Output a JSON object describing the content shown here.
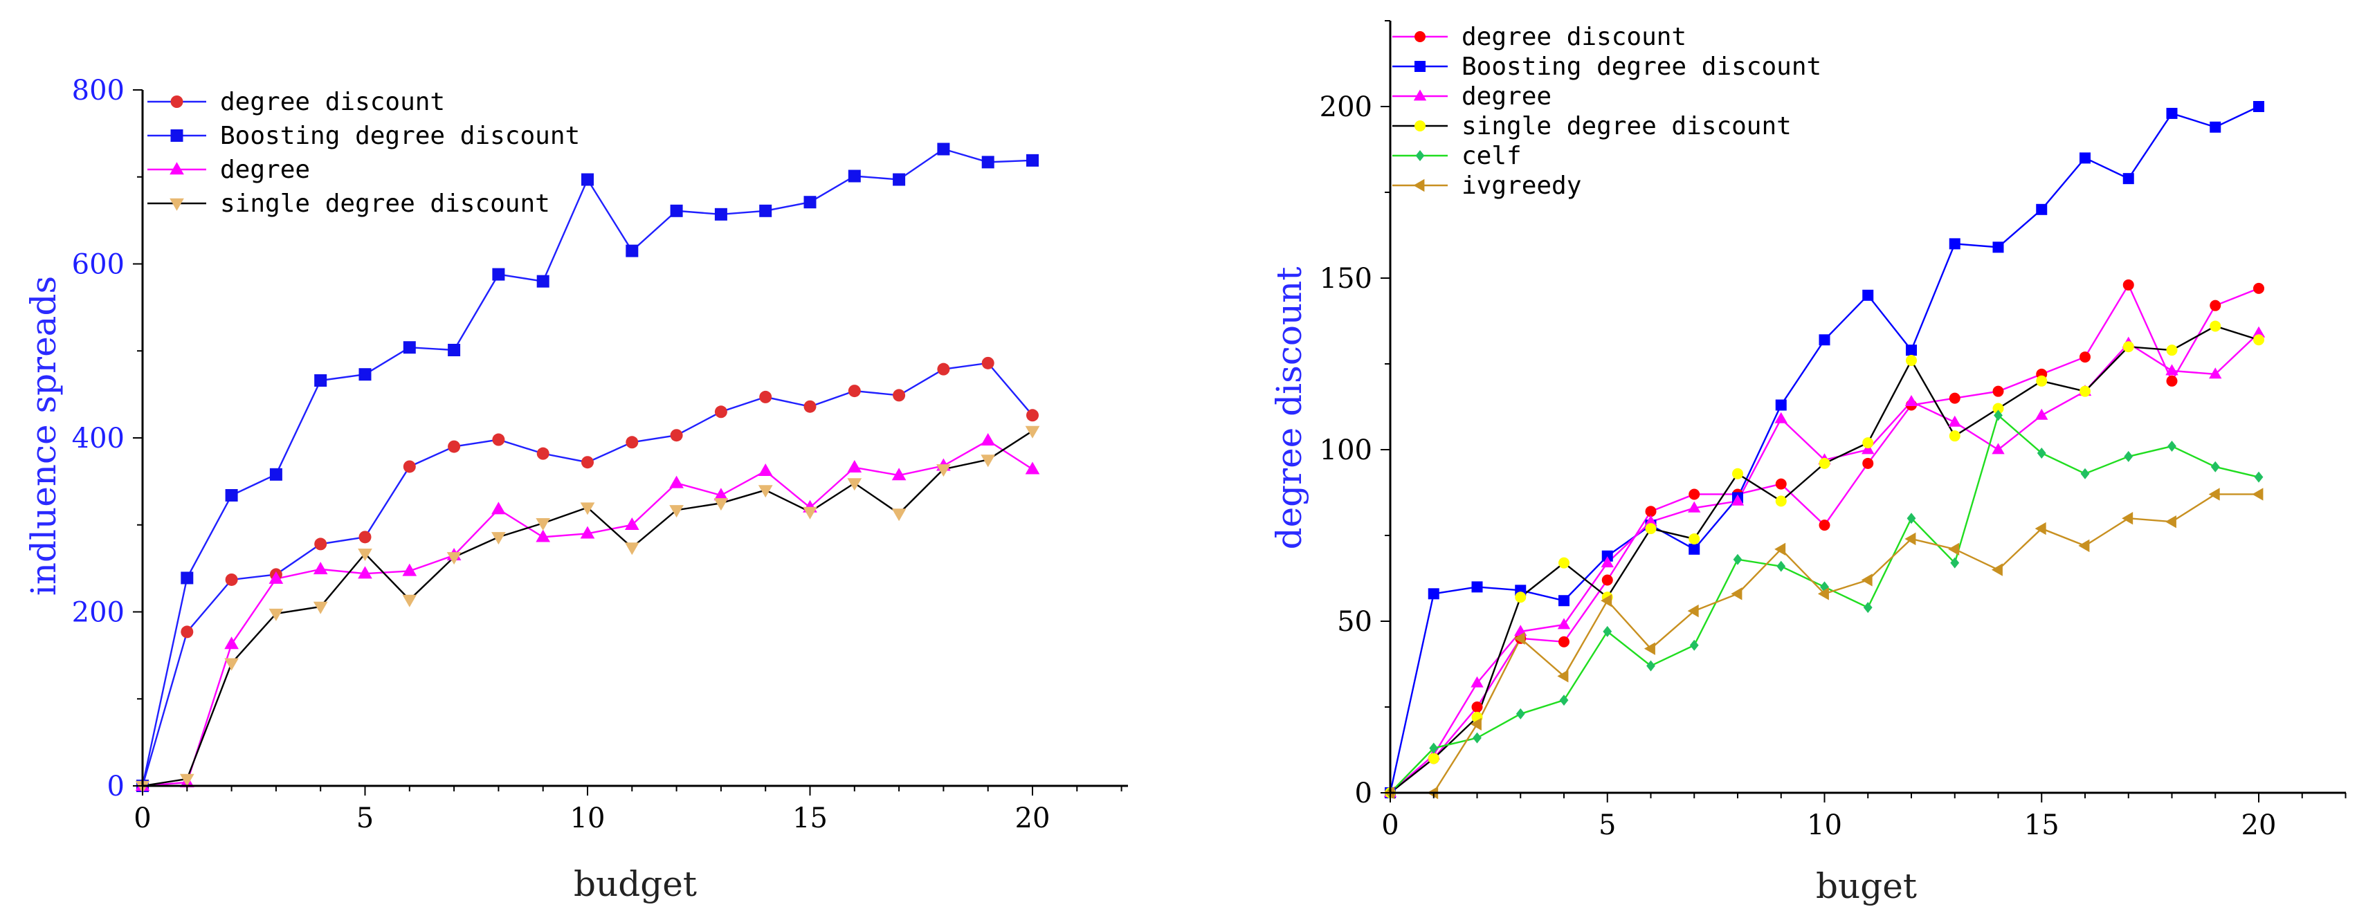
{
  "chart_data": [
    {
      "type": "line",
      "xlabel": "budget",
      "ylabel": "indluence spreads",
      "xlim": [
        0,
        22
      ],
      "ylim": [
        0,
        800
      ],
      "xticks": [
        0,
        5,
        10,
        15,
        20
      ],
      "yticks": [
        0,
        200,
        400,
        600,
        800
      ],
      "legend_position": "top-left",
      "x": [
        0,
        1,
        2,
        3,
        4,
        5,
        6,
        7,
        8,
        9,
        10,
        11,
        12,
        13,
        14,
        15,
        16,
        17,
        18,
        19,
        20
      ],
      "series": [
        {
          "name": "degree discount",
          "color": "#e03030",
          "line_color": "#2020ff",
          "marker": "circle",
          "values": [
            0,
            177,
            237,
            243,
            278,
            286,
            367,
            390,
            398,
            382,
            372,
            395,
            403,
            430,
            447,
            436,
            454,
            449,
            479,
            486,
            426
          ]
        },
        {
          "name": "Boosting degree discount",
          "color": "#1010ee",
          "line_color": "#2020ff",
          "marker": "square",
          "values": [
            0,
            239,
            334,
            358,
            466,
            473,
            504,
            501,
            588,
            580,
            697,
            615,
            661,
            657,
            661,
            671,
            701,
            697,
            732,
            717,
            719
          ]
        },
        {
          "name": "degree",
          "color": "#ff00ff",
          "line_color": "#ff00ff",
          "marker": "triangle-up",
          "values": [
            0,
            4,
            163,
            238,
            249,
            244,
            247,
            265,
            318,
            286,
            290,
            300,
            348,
            334,
            362,
            320,
            366,
            357,
            368,
            397,
            364
          ]
        },
        {
          "name": "single degree discount",
          "color": "#e8b870",
          "line_color": "#000000",
          "marker": "triangle-down",
          "values": [
            0,
            8,
            141,
            198,
            206,
            267,
            214,
            263,
            286,
            302,
            320,
            274,
            317,
            325,
            340,
            315,
            348,
            313,
            364,
            375,
            408
          ]
        }
      ]
    },
    {
      "type": "line",
      "xlabel": "buget",
      "ylabel": "degree discount",
      "xlim": [
        0,
        22
      ],
      "ylim": [
        0,
        225
      ],
      "xticks": [
        0,
        5,
        10,
        15,
        20
      ],
      "yticks": [
        0,
        50,
        100,
        150,
        200
      ],
      "legend_position": "top-left",
      "x": [
        0,
        1,
        2,
        3,
        4,
        5,
        6,
        7,
        8,
        9,
        10,
        11,
        12,
        13,
        14,
        15,
        16,
        17,
        18,
        19,
        20
      ],
      "series": [
        {
          "name": "degree discount",
          "color": "#ff0000",
          "line_color": "#ff00ff",
          "marker": "circle",
          "values": [
            0,
            10,
            25,
            45,
            44,
            62,
            82,
            87,
            87,
            90,
            78,
            96,
            113,
            115,
            117,
            122,
            127,
            148,
            120,
            142,
            147
          ]
        },
        {
          "name": "Boosting degree discount",
          "color": "#0000ff",
          "line_color": "#0000ff",
          "marker": "square",
          "values": [
            0,
            58,
            60,
            59,
            56,
            69,
            78,
            71,
            86,
            113,
            132,
            145,
            129,
            160,
            159,
            170,
            185,
            179,
            198,
            194,
            200
          ]
        },
        {
          "name": "degree",
          "color": "#ff00ff",
          "line_color": "#ff00ff",
          "marker": "triangle-up",
          "values": [
            0,
            11,
            32,
            47,
            49,
            67,
            79,
            83,
            85,
            109,
            97,
            100,
            114,
            108,
            100,
            110,
            117,
            131,
            123,
            122,
            134
          ]
        },
        {
          "name": "single degree discount",
          "color": "#ffff00",
          "line_color": "#000000",
          "marker": "circle",
          "values": [
            0,
            10,
            22,
            57,
            67,
            57,
            77,
            74,
            93,
            85,
            96,
            102,
            126,
            104,
            112,
            120,
            117,
            130,
            129,
            136,
            132
          ]
        },
        {
          "name": "celf",
          "color": "#20c060",
          "line_color": "#20dd20",
          "marker": "diamond",
          "values": [
            0,
            13,
            16,
            23,
            27,
            47,
            37,
            43,
            68,
            66,
            60,
            54,
            80,
            67,
            110,
            99,
            93,
            98,
            101,
            95,
            92
          ]
        },
        {
          "name": "ivgreedy",
          "color": "#c89020",
          "line_color": "#c89020",
          "marker": "triangle-left",
          "values": [
            0,
            0,
            20,
            45,
            34,
            56,
            42,
            53,
            58,
            71,
            58,
            62,
            74,
            71,
            65,
            77,
            72,
            80,
            79,
            87,
            87
          ]
        }
      ]
    }
  ]
}
